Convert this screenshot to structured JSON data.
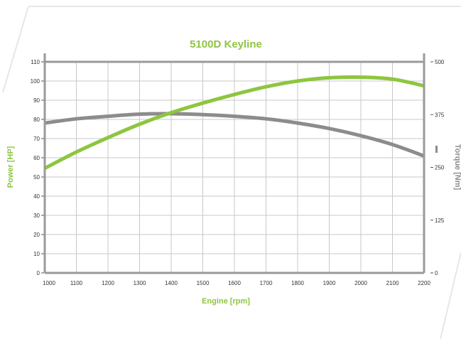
{
  "colors": {
    "power": "#8dc63f",
    "torque": "#8c8c8c",
    "grid": "#c8c8c8",
    "frame": "#9a9a9a",
    "deco": "#e6e6e6"
  },
  "chart_data": {
    "type": "line",
    "title": "5100D Keyline",
    "xlabel": "Engine [rpm]",
    "ylabel": "Power [HP]",
    "y2label": "Torque [Nm]",
    "xlim": [
      1000,
      2200
    ],
    "ylim": [
      0,
      110
    ],
    "y2lim": [
      0,
      500
    ],
    "x_ticks": [
      "1000",
      "1100",
      "1200",
      "1300",
      "1400",
      "1500",
      "1600",
      "1700",
      "1800",
      "1900",
      "2000",
      "2100",
      "2200"
    ],
    "y_ticks": [
      "0",
      "10",
      "20",
      "30",
      "40",
      "50",
      "60",
      "70",
      "80",
      "90",
      "100",
      "110"
    ],
    "y2_ticks": [
      "0",
      "125",
      "250",
      "375",
      "500"
    ],
    "grid": true,
    "series": [
      {
        "name": "Power [HP]",
        "axis": "left",
        "x": [
          1000,
          1100,
          1200,
          1300,
          1400,
          1500,
          1600,
          1700,
          1800,
          1900,
          2000,
          2100,
          2200
        ],
        "values": [
          54.5,
          63,
          70.5,
          77.5,
          83.5,
          88.5,
          93,
          97,
          100,
          101.7,
          102,
          101,
          97.5
        ]
      },
      {
        "name": "Torque [Nm]",
        "axis": "right",
        "x": [
          1000,
          1100,
          1200,
          1300,
          1400,
          1500,
          1600,
          1700,
          1800,
          1900,
          2000,
          2100,
          2200
        ],
        "values": [
          355,
          365,
          371,
          376,
          377,
          375,
          371,
          365,
          355,
          342,
          325,
          304,
          277
        ]
      }
    ]
  }
}
